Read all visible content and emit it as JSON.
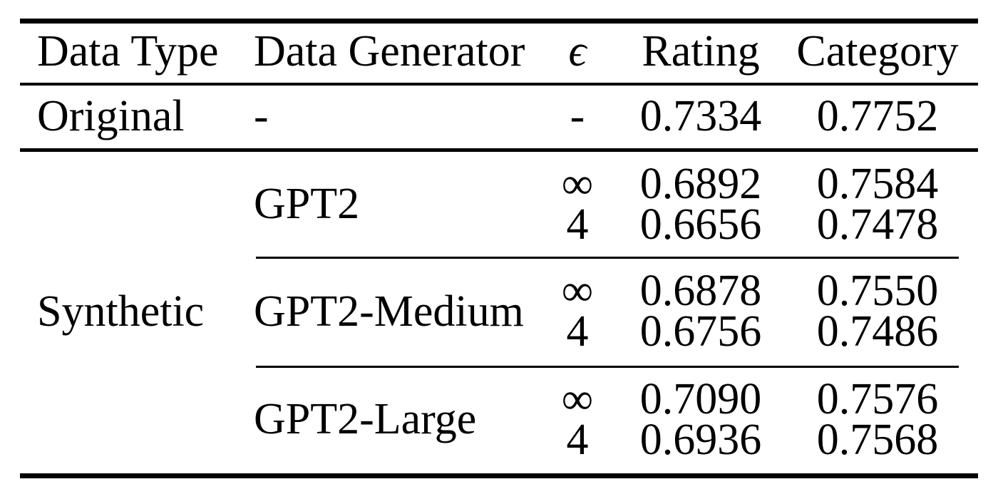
{
  "table": {
    "header": {
      "data_type": "Data Type",
      "data_generator": "Data Generator",
      "epsilon": "ϵ",
      "rating": "Rating",
      "category": "Category"
    },
    "original_row": {
      "data_type": "Original",
      "data_generator": "-",
      "epsilon": "-",
      "rating": "0.7334",
      "category": "0.7752"
    },
    "synthetic_label": "Synthetic",
    "groups": [
      {
        "generator": "GPT2",
        "entries": [
          {
            "epsilon": "∞",
            "rating": "0.6892",
            "category": "0.7584"
          },
          {
            "epsilon": "4",
            "rating": "0.6656",
            "category": "0.7478"
          }
        ]
      },
      {
        "generator": "GPT2-Medium",
        "entries": [
          {
            "epsilon": "∞",
            "rating": "0.6878",
            "category": "0.7550"
          },
          {
            "epsilon": "4",
            "rating": "0.6756",
            "category": "0.7486"
          }
        ]
      },
      {
        "generator": "GPT2-Large",
        "entries": [
          {
            "epsilon": "∞",
            "rating": "0.7090",
            "category": "0.7576"
          },
          {
            "epsilon": "4",
            "rating": "0.6936",
            "category": "0.7568"
          }
        ]
      }
    ],
    "colors": {
      "text": "#000000",
      "background": "#ffffff",
      "rule": "#000000"
    }
  },
  "chart_data": {
    "type": "table",
    "title": "",
    "columns": [
      "Data Type",
      "Data Generator",
      "ϵ",
      "Rating",
      "Category"
    ],
    "rows": [
      [
        "Original",
        "-",
        "-",
        0.7334,
        0.7752
      ],
      [
        "Synthetic",
        "GPT2",
        "∞",
        0.6892,
        0.7584
      ],
      [
        "Synthetic",
        "GPT2",
        "4",
        0.6656,
        0.7478
      ],
      [
        "Synthetic",
        "GPT2-Medium",
        "∞",
        0.6878,
        0.755
      ],
      [
        "Synthetic",
        "GPT2-Medium",
        "4",
        0.6756,
        0.7486
      ],
      [
        "Synthetic",
        "GPT2-Large",
        "∞",
        0.709,
        0.7576
      ],
      [
        "Synthetic",
        "GPT2-Large",
        "4",
        0.6936,
        0.7568
      ]
    ]
  }
}
